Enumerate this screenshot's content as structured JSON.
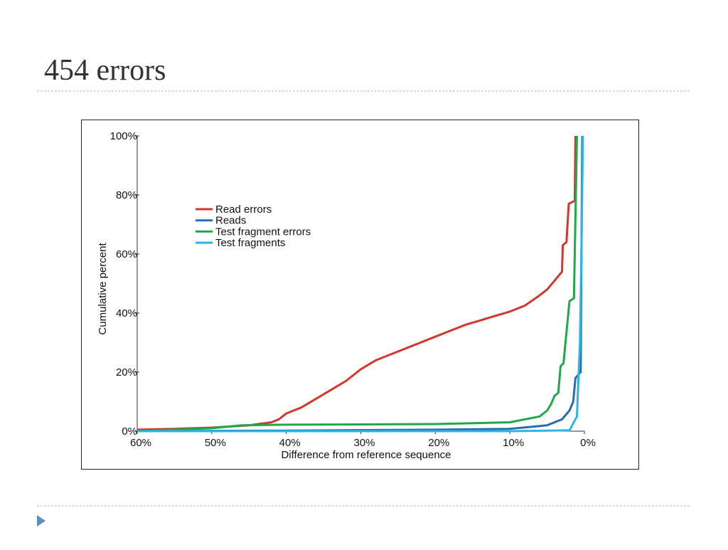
{
  "slide": {
    "title": "454 errors"
  },
  "chart_data": {
    "type": "line",
    "xlabel": "Difference from reference sequence",
    "ylabel": "Cumulative percent",
    "xlim": [
      60,
      0
    ],
    "xticks": [
      {
        "value": 60,
        "label": "60%"
      },
      {
        "value": 50,
        "label": "50%"
      },
      {
        "value": 40,
        "label": "40%"
      },
      {
        "value": 30,
        "label": "30%"
      },
      {
        "value": 20,
        "label": "20%"
      },
      {
        "value": 10,
        "label": "10%"
      },
      {
        "value": 0,
        "label": "0%"
      }
    ],
    "ylim": [
      0,
      100
    ],
    "yticks": [
      {
        "value": 0,
        "label": "0%"
      },
      {
        "value": 20,
        "label": "20%"
      },
      {
        "value": 40,
        "label": "40%"
      },
      {
        "value": 60,
        "label": "60%"
      },
      {
        "value": 80,
        "label": "80%"
      },
      {
        "value": 100,
        "label": "100%"
      }
    ],
    "series": [
      {
        "name": "Read errors",
        "color": "#d2382e",
        "x": [
          60,
          55,
          50,
          45,
          42,
          41,
          40,
          38,
          36,
          34,
          32,
          30,
          28,
          26,
          24,
          22,
          20,
          18,
          16,
          14,
          12,
          10,
          8,
          6,
          5,
          4,
          3,
          2.9,
          2.4,
          2.1,
          1.3,
          1.2
        ],
        "values": [
          0.5,
          0.8,
          1.2,
          2,
          3,
          4,
          6,
          8,
          11,
          14,
          17,
          21,
          24,
          26,
          28,
          30,
          32,
          34,
          36,
          37.5,
          39,
          40.5,
          42.5,
          46,
          48,
          51,
          54,
          63,
          64,
          77,
          78,
          100
        ]
      },
      {
        "name": "Reads",
        "color": "#2a6dad",
        "x": [
          60,
          40,
          20,
          10,
          5,
          3,
          2,
          1.5,
          1.2,
          0.5,
          0.3
        ],
        "values": [
          0,
          0.2,
          0.5,
          0.8,
          2,
          4,
          7,
          10,
          18,
          20,
          100
        ]
      },
      {
        "name": "Test fragment errors",
        "color": "#1fa84a",
        "x": [
          60,
          55,
          50,
          46,
          40,
          20,
          10,
          6,
          5,
          4.5,
          4,
          3.5,
          3.2,
          2.8,
          2.0,
          1.4,
          1.0
        ],
        "values": [
          0,
          0.5,
          1,
          2,
          2.2,
          2.4,
          3,
          5,
          7,
          9,
          12,
          13,
          22,
          23,
          44,
          45,
          100
        ]
      },
      {
        "name": "Test fragments",
        "color": "#2bb5e6",
        "x": [
          60,
          10,
          2,
          1,
          0.6,
          0.4,
          0.2
        ],
        "values": [
          0,
          0,
          0.3,
          5,
          30,
          60,
          100
        ]
      }
    ]
  }
}
